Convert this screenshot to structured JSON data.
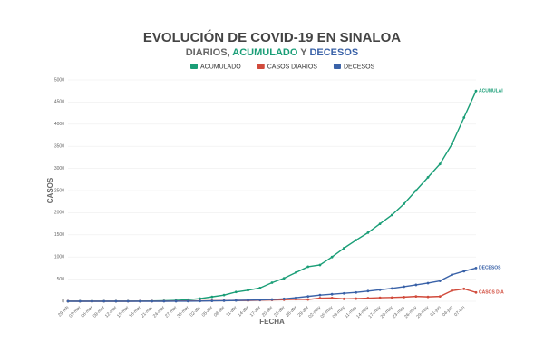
{
  "chart_data": {
    "type": "line",
    "title": "EVOLUCIÓN DE COVID-19 EN SINALOA",
    "subtitle_parts": [
      {
        "text": "DIARIOS, ",
        "color": "#666666"
      },
      {
        "text": "ACUMULADO",
        "color": "#1a9e77"
      },
      {
        "text": " Y ",
        "color": "#666666"
      },
      {
        "text": "DECESOS",
        "color": "#3a62a8"
      }
    ],
    "x_label": "FECHA",
    "y_label": "CASOS",
    "categories": [
      "29-feb",
      "03-mar",
      "06-mar",
      "09-mar",
      "12-mar",
      "15-mar",
      "18-mar",
      "21-mar",
      "24-mar",
      "27-mar",
      "30-mar",
      "02-abr",
      "05-abr",
      "08-abr",
      "11-abr",
      "14-abr",
      "17-abr",
      "20-abr",
      "23-abr",
      "26-abr",
      "29-abr",
      "02-may",
      "05-may",
      "08-may",
      "11-may",
      "14-may",
      "17-may",
      "20-may",
      "23-may",
      "26-may",
      "29-may",
      "01-jun",
      "04-jun",
      "07-jun",
      null
    ],
    "series": [
      {
        "name": "ACUMULADO",
        "end_label": "ACUMULAI",
        "color": "#1a9e77",
        "values": [
          1,
          1,
          1,
          1,
          1,
          2,
          3,
          5,
          10,
          20,
          35,
          60,
          100,
          140,
          210,
          250,
          300,
          420,
          520,
          650,
          780,
          820,
          1000,
          1200,
          1380,
          1550,
          1750,
          1950,
          2200,
          2500,
          2800,
          3100,
          3550,
          4150,
          4750
        ]
      },
      {
        "name": "CASOS DIARIOS",
        "end_label": "CASOS DIA",
        "color": "#d14b3c",
        "values": [
          1,
          0,
          0,
          0,
          0,
          0,
          1,
          1,
          2,
          3,
          5,
          8,
          12,
          15,
          20,
          18,
          25,
          30,
          35,
          45,
          40,
          70,
          75,
          55,
          60,
          70,
          80,
          85,
          95,
          110,
          100,
          110,
          240,
          280,
          200
        ]
      },
      {
        "name": "DECESOS",
        "end_label": "DECESOS",
        "color": "#3a62a8",
        "values": [
          0,
          0,
          0,
          0,
          0,
          0,
          0,
          0,
          0,
          1,
          2,
          4,
          8,
          12,
          18,
          25,
          30,
          40,
          55,
          80,
          110,
          140,
          160,
          180,
          200,
          230,
          260,
          290,
          330,
          370,
          410,
          460,
          600,
          680,
          750
        ]
      }
    ],
    "ylim": [
      0,
      5000
    ],
    "yticks": [
      0,
      500,
      1000,
      1500,
      2000,
      2500,
      3000,
      3500,
      4000,
      4500,
      5000
    ],
    "grid": true
  }
}
